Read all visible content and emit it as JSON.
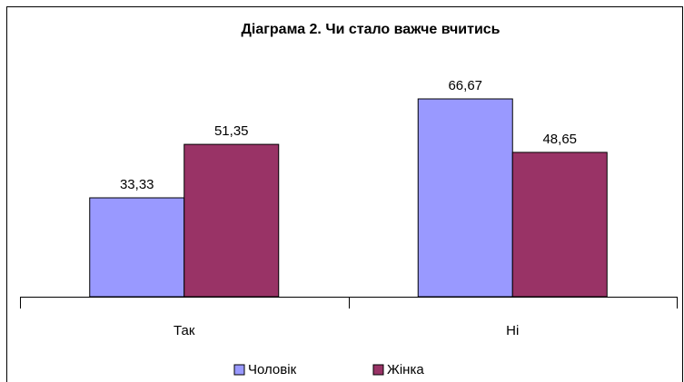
{
  "chart_data": {
    "type": "bar",
    "title": "Діаграма 2. Чи стало важче вчитись",
    "categories": [
      "Так",
      "Ні"
    ],
    "series": [
      {
        "name": "Чоловік",
        "color": "#9999ff",
        "values": [
          33.33,
          66.67
        ],
        "value_labels": [
          "33,33",
          "66,67"
        ]
      },
      {
        "name": "Жінка",
        "color": "#993366",
        "values": [
          51.35,
          48.65
        ],
        "value_labels": [
          "51,35",
          "48,65"
        ]
      }
    ],
    "legend": "bottom"
  }
}
